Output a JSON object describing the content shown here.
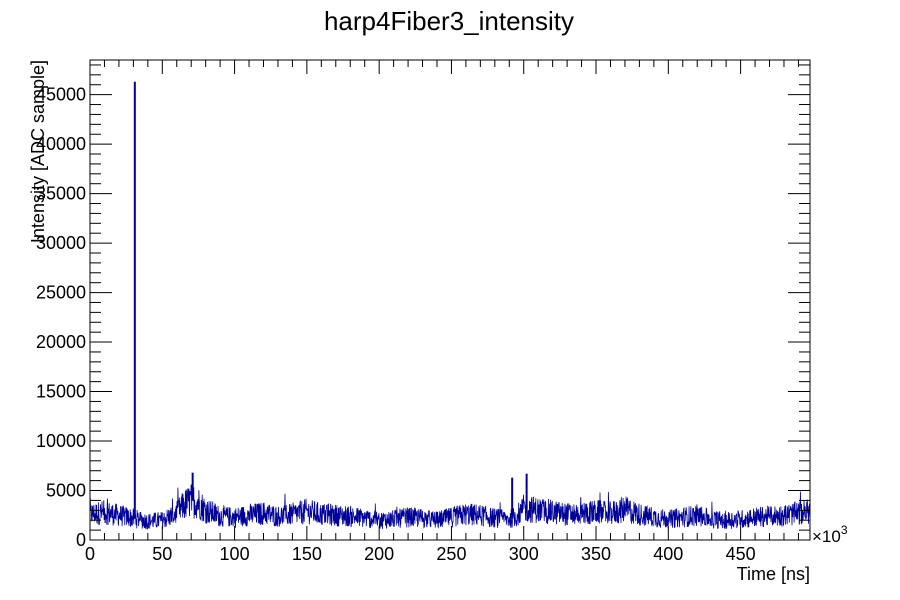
{
  "chart_data": {
    "type": "line",
    "title": "harp4Fiber3_intensity",
    "xlabel": "Time [ns]",
    "ylabel": "Intensity [ADC sample]",
    "x_multiplier_label": "×10",
    "x_multiplier_exponent": "3",
    "xlim": [
      0,
      498
    ],
    "ylim": [
      0,
      48500
    ],
    "x_ticks": [
      0,
      50,
      100,
      150,
      200,
      250,
      300,
      350,
      400,
      450
    ],
    "x_tick_labels": [
      "0",
      "50",
      "100",
      "150",
      "200",
      "250",
      "300",
      "350",
      "400",
      "450"
    ],
    "y_ticks": [
      0,
      5000,
      10000,
      15000,
      20000,
      25000,
      30000,
      35000,
      40000,
      45000
    ],
    "y_tick_labels": [
      "0",
      "5000",
      "10000",
      "15000",
      "20000",
      "25000",
      "30000",
      "35000",
      "40000",
      "45000"
    ],
    "grid": false,
    "series": [
      {
        "color": "#000099",
        "baseline_profile": {
          "x": [
            0,
            10,
            20,
            30,
            40,
            50,
            60,
            65,
            70,
            75,
            80,
            90,
            100,
            110,
            120,
            130,
            140,
            150,
            160,
            170,
            180,
            190,
            200,
            210,
            220,
            230,
            240,
            250,
            260,
            270,
            280,
            290,
            295,
            300,
            310,
            320,
            330,
            340,
            350,
            360,
            370,
            380,
            390,
            400,
            410,
            420,
            430,
            440,
            450,
            460,
            470,
            480,
            490,
            498
          ],
          "y": [
            2600,
            2800,
            2500,
            2200,
            1900,
            2000,
            2700,
            3500,
            4000,
            3800,
            3000,
            2400,
            2300,
            2500,
            2700,
            2400,
            2600,
            2900,
            2600,
            2500,
            2400,
            2200,
            2000,
            2100,
            2300,
            2200,
            2000,
            2300,
            2600,
            2500,
            2200,
            2100,
            2400,
            3200,
            3000,
            2800,
            2600,
            2700,
            2800,
            2700,
            3100,
            2600,
            2300,
            2100,
            2300,
            2500,
            2100,
            2000,
            2100,
            2300,
            2400,
            2500,
            2700,
            2900
          ]
        },
        "spikes": [
          {
            "x": 31,
            "y": 46300
          },
          {
            "x": 71,
            "y": 6800
          },
          {
            "x": 292,
            "y": 6300
          },
          {
            "x": 302,
            "y": 6700
          }
        ]
      }
    ]
  }
}
